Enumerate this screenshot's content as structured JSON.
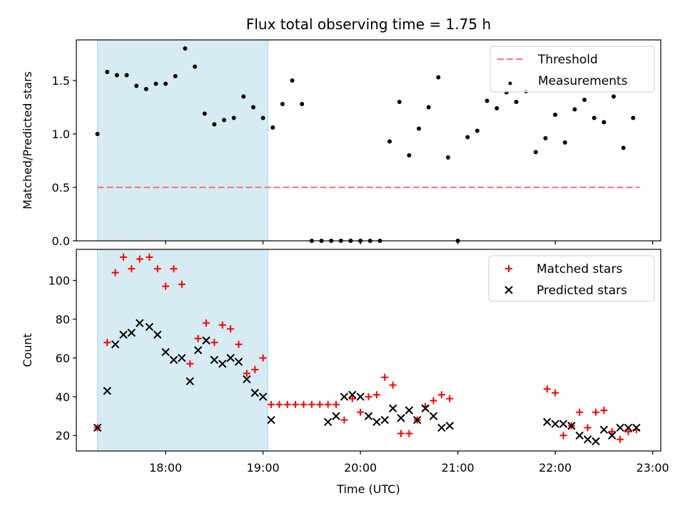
{
  "chart_data": [
    {
      "type": "scatter",
      "title": "Flux total observing time = 1.75 h",
      "xlabel": "",
      "ylabel": "Matched/Predicted stars",
      "ylim": [
        0,
        1.88
      ],
      "yticks": [
        0.0,
        0.5,
        1.0,
        1.5
      ],
      "ytick_labels": [
        "0.0",
        "0.5",
        "1.0",
        "1.5"
      ],
      "xlim": [
        "17:05",
        "23:05"
      ],
      "shaded_span": [
        "17:18",
        "19:03"
      ],
      "shaded_color": "#add8e6",
      "legend_position": "upper-right",
      "series": [
        {
          "name": "Threshold",
          "kind": "dashed-line",
          "color": "#f08080",
          "x": [
            "17:18",
            "22:52"
          ],
          "y": [
            0.5,
            0.5
          ]
        },
        {
          "name": "Measurements",
          "kind": "dots",
          "color": "#000000",
          "x": [
            "17:18",
            "17:24",
            "17:30",
            "17:36",
            "17:42",
            "17:48",
            "17:54",
            "18:00",
            "18:06",
            "18:12",
            "18:18",
            "18:24",
            "18:30",
            "18:36",
            "18:42",
            "18:48",
            "18:54",
            "19:00",
            "19:06",
            "19:12",
            "19:18",
            "19:24",
            "19:30",
            "19:36",
            "19:42",
            "19:48",
            "19:54",
            "20:00",
            "20:06",
            "20:12",
            "20:18",
            "20:24",
            "20:30",
            "20:36",
            "20:42",
            "20:48",
            "20:54",
            "21:00",
            "21:06",
            "21:12",
            "21:18",
            "21:24",
            "21:30",
            "21:36",
            "21:42",
            "21:48",
            "21:54",
            "22:00",
            "22:06",
            "22:12",
            "22:18",
            "22:24",
            "22:30",
            "22:36",
            "22:42",
            "22:48"
          ],
          "y": [
            1.0,
            1.58,
            1.55,
            1.55,
            1.45,
            1.42,
            1.47,
            1.47,
            1.54,
            1.8,
            1.63,
            1.19,
            1.09,
            1.13,
            1.15,
            1.35,
            1.25,
            1.15,
            1.06,
            1.28,
            1.5,
            1.28,
            0,
            0,
            0,
            0,
            0,
            0,
            0,
            0,
            0.93,
            1.3,
            0.8,
            1.05,
            1.25,
            1.53,
            0.78,
            0,
            0.97,
            1.03,
            1.31,
            1.24,
            1.39,
            1.3,
            1.4,
            0.83,
            0.96,
            1.18,
            0.92,
            1.23,
            1.32,
            1.15,
            1.11,
            1.35,
            0.87,
            1.15
          ]
        }
      ]
    },
    {
      "type": "scatter",
      "title": "",
      "xlabel": "Time (UTC)",
      "ylabel": "Count",
      "ylim": [
        12,
        116
      ],
      "yticks": [
        20,
        40,
        60,
        80,
        100
      ],
      "ytick_labels": [
        "20",
        "40",
        "60",
        "80",
        "100"
      ],
      "xlim": [
        "17:05",
        "23:05"
      ],
      "xticks": [
        "18:00",
        "19:00",
        "20:00",
        "21:00",
        "22:00",
        "23:00"
      ],
      "shaded_span": [
        "17:18",
        "19:03"
      ],
      "shaded_color": "#add8e6",
      "legend_position": "upper-right",
      "series": [
        {
          "name": "Matched stars",
          "kind": "plus",
          "color": "#ff0000",
          "x": [
            "17:18",
            "17:24",
            "17:29",
            "17:34",
            "17:39",
            "17:44",
            "17:50",
            "17:55",
            "18:00",
            "18:05",
            "18:10",
            "18:15",
            "18:20",
            "18:25",
            "18:30",
            "18:35",
            "18:40",
            "18:45",
            "18:50",
            "18:55",
            "19:00",
            "19:05",
            "19:10",
            "19:15",
            "19:20",
            "19:25",
            "19:30",
            "19:35",
            "19:40",
            "19:45",
            "19:50",
            "19:55",
            "20:00",
            "20:05",
            "20:10",
            "20:15",
            "20:20",
            "20:25",
            "20:30",
            "20:35",
            "20:40",
            "20:45",
            "20:50",
            "20:55",
            "21:55",
            "22:00",
            "22:05",
            "22:10",
            "22:15",
            "22:20",
            "22:25",
            "22:30",
            "22:35",
            "22:40",
            "22:45",
            "22:50"
          ],
          "y": [
            24,
            68,
            104,
            112,
            106,
            111,
            112,
            106,
            97,
            106,
            98,
            57,
            70,
            78,
            68,
            77,
            75,
            67,
            52,
            54,
            60,
            36,
            36,
            36,
            36,
            36,
            36,
            36,
            36,
            36,
            28,
            39,
            32,
            40,
            41,
            50,
            46,
            21,
            21,
            28,
            35,
            38,
            41,
            39,
            44,
            42,
            20,
            25,
            32,
            24,
            32,
            33,
            22,
            18,
            22,
            23
          ]
        },
        {
          "name": "Predicted stars",
          "kind": "cross",
          "color": "#000000",
          "x": [
            "17:18",
            "17:24",
            "17:29",
            "17:34",
            "17:39",
            "17:44",
            "17:50",
            "17:55",
            "18:00",
            "18:05",
            "18:10",
            "18:15",
            "18:20",
            "18:25",
            "18:30",
            "18:35",
            "18:40",
            "18:45",
            "18:50",
            "18:55",
            "19:00",
            "19:05",
            "19:40",
            "19:45",
            "19:50",
            "19:55",
            "20:00",
            "20:05",
            "20:10",
            "20:15",
            "20:20",
            "20:25",
            "20:30",
            "20:35",
            "20:40",
            "20:45",
            "20:50",
            "20:55",
            "21:55",
            "22:00",
            "22:05",
            "22:10",
            "22:15",
            "22:20",
            "22:25",
            "22:30",
            "22:35",
            "22:40",
            "22:45",
            "22:50"
          ],
          "y": [
            24,
            43,
            67,
            72,
            73,
            78,
            76,
            72,
            63,
            59,
            60,
            48,
            64,
            69,
            59,
            57,
            60,
            58,
            49,
            42,
            40,
            28,
            27,
            30,
            40,
            41,
            40,
            30,
            27,
            28,
            34,
            29,
            33,
            28,
            34,
            30,
            24,
            25,
            27,
            26,
            26,
            25,
            20,
            18,
            17,
            23,
            20,
            24,
            24,
            24
          ]
        }
      ]
    }
  ]
}
